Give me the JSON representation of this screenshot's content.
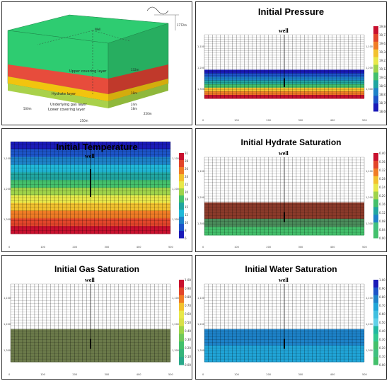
{
  "model": {
    "well": "Well",
    "depth": "1772m",
    "layers": [
      "Upper covering layer",
      "Hydrate layer",
      "Underlying gas layer",
      "Lower covering layer"
    ],
    "thicknesses": [
      "132m",
      "18m",
      "24m",
      "18m"
    ],
    "dims": [
      "500m",
      "250m",
      "250m"
    ]
  },
  "panels": [
    {
      "id": "pressure",
      "title": "Initial Pressure",
      "well": "well",
      "colorbar": [
        "19,845",
        "19,739",
        "19,632",
        "19,346",
        "19,230",
        "19,123",
        "19,026",
        "18,920",
        "18,813",
        "18,707",
        "18,600"
      ],
      "cb_colors": [
        "#c8102e",
        "#e2452a",
        "#f07c25",
        "#f2c12e",
        "#e8e84a",
        "#9ed34a",
        "#43c06b",
        "#20a5a0",
        "#1d82c8",
        "#1c54c8",
        "#1a1ab8"
      ],
      "bands": [
        "#1a1ab8",
        "#1c54c8",
        "#1d82c8",
        "#20a5a0",
        "#43c06b",
        "#f2c12e",
        "#f07c25",
        "#c8102e"
      ]
    },
    {
      "id": "temperature",
      "title": "Initial Temperature",
      "well": "well",
      "colorbar": [
        "31",
        "28",
        "26",
        "24",
        "22",
        "20",
        "18",
        "15",
        "12",
        "10",
        "8",
        "6"
      ],
      "cb_colors": [
        "#c8102e",
        "#e2452a",
        "#f07c25",
        "#f2c12e",
        "#e8e84a",
        "#9ed34a",
        "#43c06b",
        "#20a5a0",
        "#20b8d8",
        "#1d82c8",
        "#1c54c8",
        "#1a1ab8"
      ],
      "bands": [
        "#1a1ab8",
        "#1c54c8",
        "#1d82c8",
        "#20b8d8",
        "#20a5a0",
        "#43c06b",
        "#9ed34a",
        "#e8e84a",
        "#f2c12e",
        "#f07c25",
        "#e2452a",
        "#c8102e"
      ]
    },
    {
      "id": "hydrate",
      "title": "Initial Hydrate Saturation",
      "well": "well",
      "colorbar": [
        "0.40",
        "0.36",
        "0.32",
        "0.28",
        "0.24",
        "0.20",
        "0.16",
        "0.12",
        "0.08",
        "0.04",
        "0.00"
      ],
      "cb_colors": [
        "#c8102e",
        "#e2452a",
        "#f07c25",
        "#f2c12e",
        "#e8e84a",
        "#9ed34a",
        "#43c06b",
        "#20a5a0",
        "#1d82c8",
        "#40c080",
        "#43c06b"
      ],
      "bands": [
        "#8b3a2a",
        "#8b3a2a",
        "#4a8a5a",
        "#43c06b"
      ]
    },
    {
      "id": "gas",
      "title": "Initial Gas Saturation",
      "well": "well",
      "colorbar": [
        "1.00",
        "0.90",
        "0.80",
        "0.70",
        "0.60",
        "0.50",
        "0.40",
        "0.30",
        "0.20",
        "0.10",
        "0.00"
      ],
      "cb_colors": [
        "#c8102e",
        "#e2452a",
        "#f07c25",
        "#f2c12e",
        "#e8e84a",
        "#d8e04a",
        "#9ed34a",
        "#70c85a",
        "#43c06b",
        "#35b47a",
        "#2aa88a"
      ],
      "bands": [
        "#6b7a4a",
        "#6b7a4a",
        "#6b7a4a",
        "#6b7a4a"
      ]
    },
    {
      "id": "water",
      "title": "Initial Water Saturation",
      "well": "well",
      "colorbar": [
        "1.00",
        "0.90",
        "0.80",
        "0.70",
        "0.60",
        "0.50",
        "0.40",
        "0.30",
        "0.20",
        "0.10",
        "0.00"
      ],
      "cb_colors": [
        "#1a1ab8",
        "#1c54c8",
        "#1d82c8",
        "#20a5d8",
        "#40c0e0",
        "#60d0e8",
        "#20b8a0",
        "#30c890",
        "#43c06b",
        "#40c080",
        "#43c06b"
      ],
      "bands": [
        "#1d82c8",
        "#1d82c8",
        "#20a5d8",
        "#20a5d8"
      ]
    }
  ],
  "x_ticks": [
    "0",
    "100",
    "200",
    "300",
    "400",
    "500"
  ],
  "y_ticks": [
    "1,100",
    "1,200",
    "1,300"
  ]
}
